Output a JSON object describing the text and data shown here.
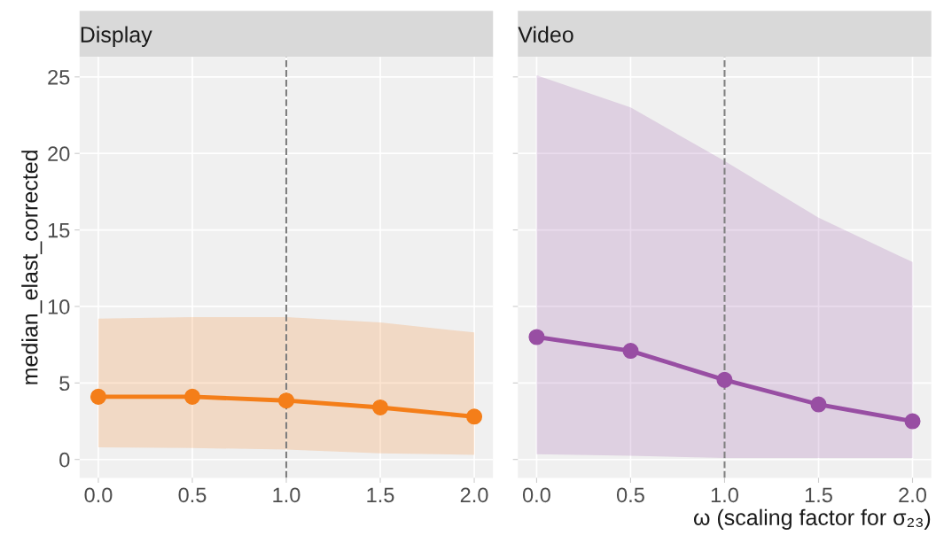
{
  "chart_data": [
    {
      "type": "line",
      "title": "Display",
      "ylabel": "median_elast_corrected",
      "x": [
        0,
        0.5,
        1,
        1.5,
        2
      ],
      "xlim": [
        -0.1,
        2.1
      ],
      "xticks": [
        {
          "value": 0,
          "label": "0.0"
        },
        {
          "value": 0.5,
          "label": "0.5"
        },
        {
          "value": 1,
          "label": "1.0"
        },
        {
          "value": 1.5,
          "label": "1.5"
        },
        {
          "value": 2,
          "label": "2.0"
        }
      ],
      "ylim": [
        -1.2,
        26.3
      ],
      "yticks": [
        0,
        5,
        10,
        15,
        20,
        25
      ],
      "grid": true,
      "marker": "circle",
      "line_style": "solid",
      "legend": false,
      "series": [
        {
          "color": "#f47e19",
          "values": [
            4.1,
            4.1,
            3.85,
            3.4,
            2.8
          ],
          "lower": [
            0.8,
            0.75,
            0.65,
            0.4,
            0.3
          ],
          "upper": [
            9.2,
            9.3,
            9.3,
            8.95,
            8.3
          ]
        }
      ],
      "ref_lines": [
        {
          "axis": "x",
          "value": 1,
          "color": "#7f7f7f",
          "line_style": "dashed"
        }
      ]
    },
    {
      "type": "line",
      "title": "Video",
      "xlabel": "ω (scaling factor for σ₂₃)",
      "x": [
        0,
        0.5,
        1,
        1.5,
        2
      ],
      "xlim": [
        -0.1,
        2.1
      ],
      "xticks": [
        {
          "value": 0,
          "label": "0.0"
        },
        {
          "value": 0.5,
          "label": "0.5"
        },
        {
          "value": 1,
          "label": "1.0"
        },
        {
          "value": 1.5,
          "label": "1.5"
        },
        {
          "value": 2,
          "label": "2.0"
        }
      ],
      "ylim": [
        -1.2,
        26.3
      ],
      "yticks": [
        0,
        5,
        10,
        15,
        20,
        25
      ],
      "tick_labels": "x",
      "grid": true,
      "marker": "circle",
      "line_style": "solid",
      "legend": false,
      "series": [
        {
          "color": "#984ea3",
          "values": [
            8.0,
            7.1,
            5.2,
            3.6,
            2.5
          ],
          "lower": [
            0.35,
            0.25,
            0.1,
            0.1,
            0.1
          ],
          "upper": [
            25.1,
            23.0,
            19.5,
            15.8,
            12.9
          ]
        }
      ],
      "ref_lines": [
        {
          "axis": "x",
          "value": 1,
          "color": "#7f7f7f",
          "line_style": "dashed"
        }
      ]
    }
  ]
}
